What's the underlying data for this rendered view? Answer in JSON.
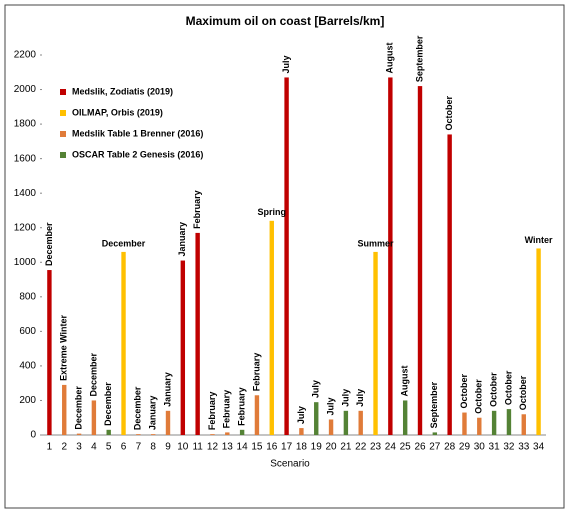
{
  "chart_data": {
    "type": "bar",
    "title": "Maximum oil on coast [Barrels/km]",
    "x_label": "Scenario",
    "categories": [
      "1",
      "2",
      "3",
      "4",
      "5",
      "6",
      "7",
      "8",
      "9",
      "10",
      "11",
      "12",
      "13",
      "14",
      "15",
      "16",
      "17",
      "18",
      "19",
      "20",
      "21",
      "22",
      "23",
      "24",
      "25",
      "26",
      "27",
      "28",
      "29",
      "30",
      "31",
      "32",
      "33",
      "34"
    ],
    "ylim": [
      0,
      2200
    ],
    "yticks": [
      0,
      200,
      400,
      600,
      800,
      1000,
      1200,
      1400,
      1600,
      1800,
      2000,
      2200
    ],
    "legend": "upper left",
    "series": [
      {
        "name": "Medslik, Zodiatis (2019)",
        "color": "#c00000",
        "horizontal_labels": false,
        "values": [
          955,
          null,
          null,
          null,
          null,
          null,
          null,
          null,
          null,
          1010,
          1170,
          null,
          null,
          null,
          null,
          null,
          2070,
          null,
          null,
          null,
          null,
          null,
          null,
          2070,
          null,
          2020,
          null,
          1740,
          null,
          null,
          null,
          null,
          null,
          null
        ],
        "labels": [
          "December",
          null,
          null,
          null,
          null,
          null,
          null,
          null,
          null,
          "January",
          "February",
          null,
          null,
          null,
          null,
          null,
          "July",
          null,
          null,
          null,
          null,
          null,
          null,
          "August",
          null,
          "September",
          null,
          "October",
          null,
          null,
          null,
          null,
          null,
          null
        ]
      },
      {
        "name": "OILMAP, Orbis (2019)",
        "color": "#ffc000",
        "horizontal_labels": true,
        "values": [
          null,
          null,
          null,
          null,
          null,
          1060,
          null,
          null,
          null,
          null,
          null,
          null,
          null,
          null,
          null,
          1240,
          null,
          null,
          null,
          null,
          null,
          null,
          1060,
          null,
          null,
          null,
          null,
          null,
          null,
          null,
          null,
          null,
          null,
          1080
        ],
        "labels": [
          null,
          null,
          null,
          null,
          null,
          "December",
          null,
          null,
          null,
          null,
          null,
          null,
          null,
          null,
          null,
          "Spring",
          null,
          null,
          null,
          null,
          null,
          null,
          "Summer",
          null,
          null,
          null,
          null,
          null,
          null,
          null,
          null,
          null,
          null,
          "Winter"
        ]
      },
      {
        "name": "Medslik Table 1  Brenner (2016)",
        "color": "#e07b39",
        "horizontal_labels": false,
        "values": [
          null,
          290,
          8,
          200,
          null,
          null,
          5,
          5,
          140,
          null,
          null,
          5,
          15,
          null,
          230,
          null,
          null,
          40,
          null,
          90,
          null,
          140,
          null,
          null,
          null,
          null,
          null,
          null,
          130,
          100,
          null,
          null,
          120,
          null
        ],
        "labels": [
          null,
          "Extreme Winter",
          "December",
          "December",
          null,
          null,
          "December",
          "January",
          "January",
          null,
          null,
          "February",
          "February",
          null,
          "February",
          null,
          null,
          "July",
          null,
          "July",
          null,
          "July",
          null,
          null,
          null,
          null,
          null,
          null,
          "October",
          "October",
          null,
          null,
          "October",
          null
        ]
      },
      {
        "name": "OSCAR Table 2 Genesis (2016)",
        "color": "#548235",
        "horizontal_labels": false,
        "values": [
          null,
          null,
          null,
          null,
          30,
          null,
          null,
          null,
          null,
          null,
          null,
          null,
          null,
          30,
          null,
          null,
          null,
          null,
          190,
          null,
          140,
          null,
          null,
          null,
          200,
          null,
          15,
          null,
          null,
          null,
          140,
          150,
          null,
          null
        ],
        "labels": [
          null,
          null,
          null,
          null,
          "December",
          null,
          null,
          null,
          null,
          null,
          null,
          null,
          null,
          "February",
          null,
          null,
          null,
          null,
          "July",
          null,
          "July",
          null,
          null,
          null,
          "August",
          null,
          "September",
          null,
          null,
          null,
          "October",
          "October",
          null,
          null
        ]
      }
    ]
  }
}
